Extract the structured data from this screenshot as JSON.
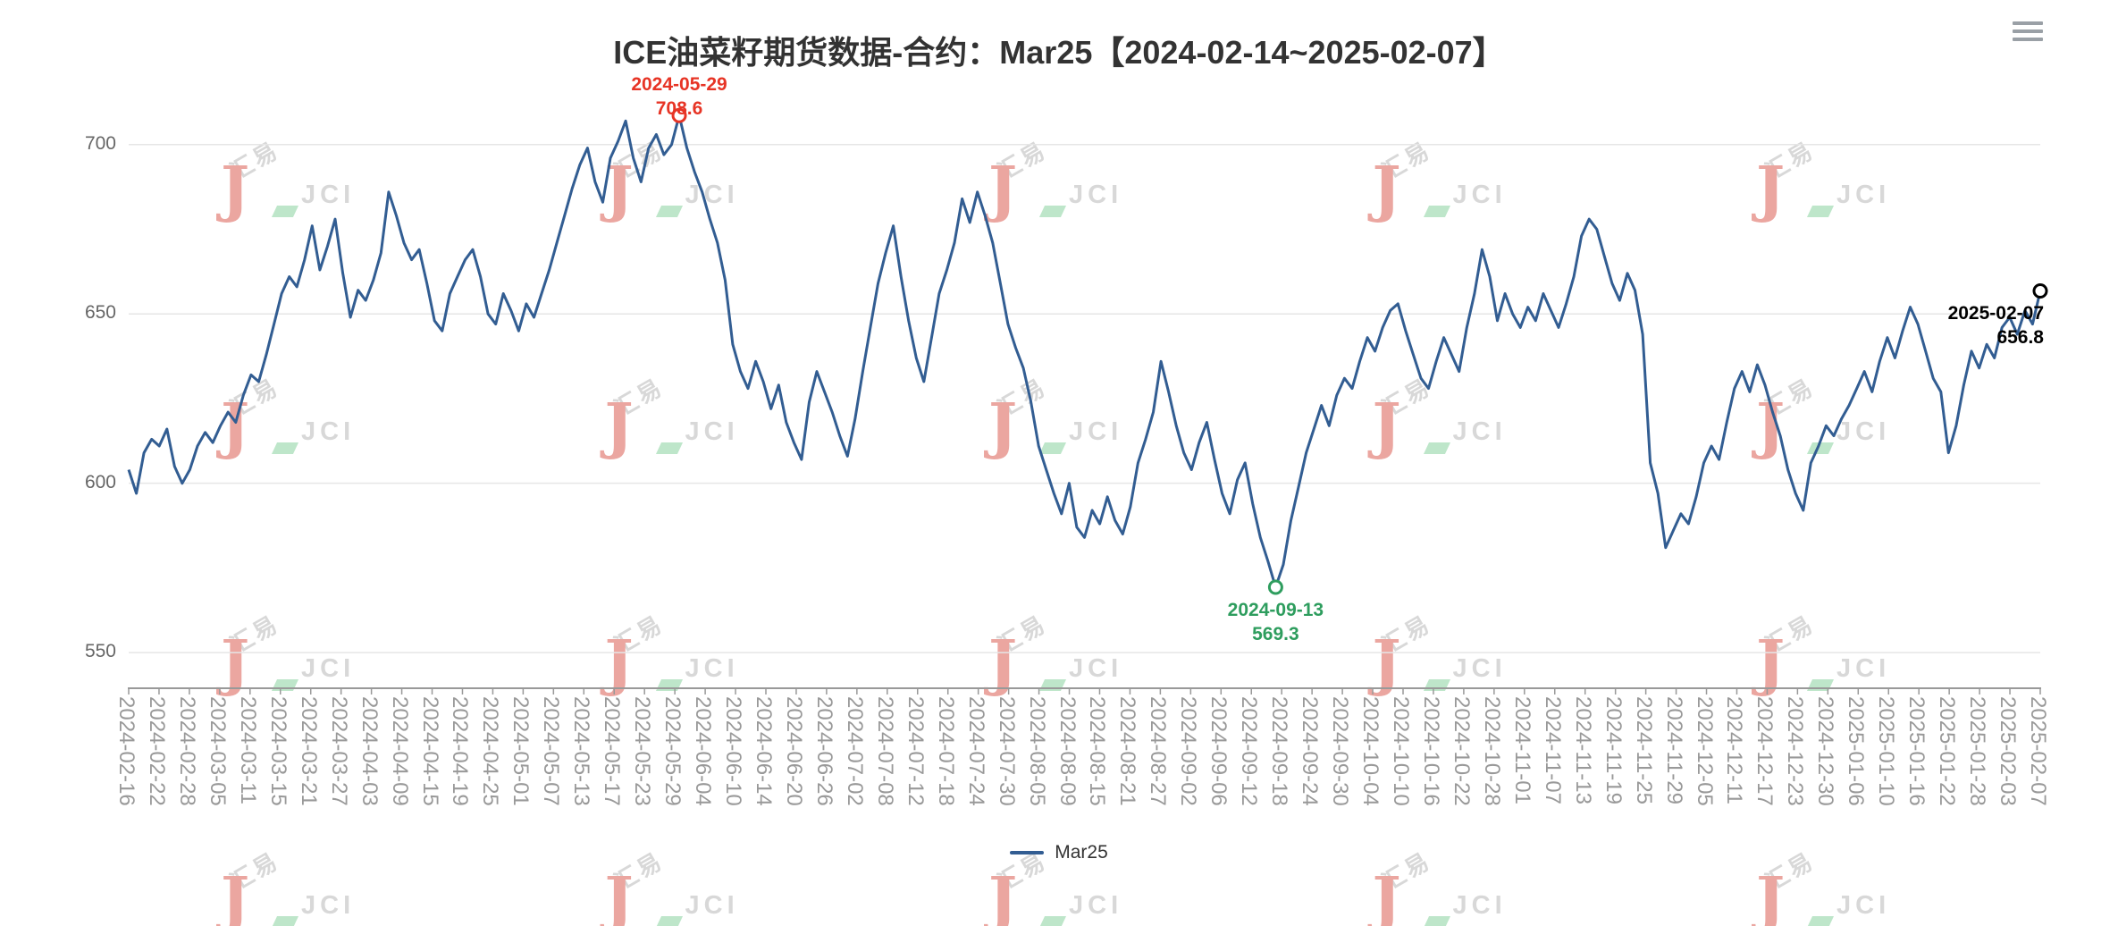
{
  "legend": {
    "items": [
      {
        "label": "Mar25",
        "color": "#325d92"
      }
    ]
  },
  "toolbox": {
    "icon": "hamburger-menu-icon"
  },
  "watermark": {
    "hy": "汇易",
    "j": "J",
    "jci": "JCI",
    "red": "#d94f44",
    "green": "#7fcf96",
    "gray": "#b3b3b3"
  },
  "chart_data": {
    "type": "line",
    "title": "ICE油菜籽期货数据-合约：Mar25【2024-02-14~2025-02-07】",
    "series_name": "Mar25",
    "line_color": "#325d92",
    "grid_color": "#e6e6e6",
    "axis_color": "#999999",
    "ylim": [
      540,
      720
    ],
    "y_ticks": [
      550,
      600,
      650,
      700
    ],
    "x_labels": [
      "2024-02-16",
      "2024-02-22",
      "2024-02-28",
      "2024-03-05",
      "2024-03-11",
      "2024-03-15",
      "2024-03-21",
      "2024-03-27",
      "2024-04-03",
      "2024-04-09",
      "2024-04-15",
      "2024-04-19",
      "2024-04-25",
      "2024-05-01",
      "2024-05-07",
      "2024-05-13",
      "2024-05-17",
      "2024-05-23",
      "2024-05-29",
      "2024-06-04",
      "2024-06-10",
      "2024-06-14",
      "2024-06-20",
      "2024-06-26",
      "2024-07-02",
      "2024-07-08",
      "2024-07-12",
      "2024-07-18",
      "2024-07-24",
      "2024-07-30",
      "2024-08-05",
      "2024-08-09",
      "2024-08-15",
      "2024-08-21",
      "2024-08-27",
      "2024-09-02",
      "2024-09-06",
      "2024-09-12",
      "2024-09-18",
      "2024-09-24",
      "2024-09-30",
      "2024-10-04",
      "2024-10-10",
      "2024-10-16",
      "2024-10-22",
      "2024-10-28",
      "2024-11-01",
      "2024-11-07",
      "2024-11-13",
      "2024-11-19",
      "2024-11-25",
      "2024-11-29",
      "2024-12-05",
      "2024-12-11",
      "2024-12-17",
      "2024-12-23",
      "2024-12-30",
      "2025-01-06",
      "2025-01-10",
      "2025-01-16",
      "2025-01-22",
      "2025-01-28",
      "2025-02-03",
      "2025-02-07"
    ],
    "values": [
      604,
      597,
      609,
      613,
      611,
      616,
      605,
      600,
      604,
      611,
      615,
      612,
      617,
      621,
      618,
      626,
      632,
      630,
      638,
      647,
      656,
      661,
      658,
      666,
      676,
      663,
      670,
      678,
      662,
      649,
      657,
      654,
      660,
      668,
      686,
      679,
      671,
      666,
      669,
      659,
      648,
      645,
      656,
      661,
      666,
      669,
      661,
      650,
      647,
      656,
      651,
      645,
      653,
      649,
      656,
      663,
      671,
      679,
      687,
      694,
      699,
      689,
      683,
      696,
      701,
      707,
      696,
      689,
      699,
      703,
      697,
      700,
      708.6,
      699,
      692,
      686,
      678,
      671,
      660,
      641,
      633,
      628,
      636,
      630,
      622,
      629,
      618,
      612,
      607,
      624,
      633,
      627,
      621,
      614,
      608,
      619,
      633,
      646,
      659,
      668,
      676,
      661,
      648,
      637,
      630,
      643,
      656,
      663,
      671,
      684,
      677,
      686,
      679,
      671,
      659,
      647,
      640,
      634,
      624,
      611,
      604,
      597,
      591,
      600,
      587,
      584,
      592,
      588,
      596,
      589,
      585,
      593,
      606,
      613,
      621,
      636,
      627,
      617,
      609,
      604,
      612,
      618,
      607,
      597,
      591,
      601,
      606,
      594,
      584,
      577,
      569.3,
      576,
      589,
      599,
      609,
      616,
      623,
      617,
      626,
      631,
      628,
      636,
      643,
      639,
      646,
      651,
      653,
      645,
      638,
      631,
      628,
      636,
      643,
      638,
      633,
      646,
      656,
      669,
      661,
      648,
      656,
      650,
      646,
      652,
      648,
      656,
      651,
      646,
      653,
      661,
      673,
      678,
      675,
      667,
      659,
      654,
      662,
      657,
      644,
      606,
      597,
      581,
      586,
      591,
      588,
      596,
      606,
      611,
      607,
      618,
      628,
      633,
      627,
      635,
      629,
      621,
      614,
      604,
      597,
      592,
      606,
      611,
      617,
      614,
      619,
      623,
      628,
      633,
      627,
      636,
      643,
      637,
      645,
      652,
      647,
      639,
      631,
      627,
      609,
      617,
      629,
      639,
      634,
      641,
      637,
      646,
      649,
      644,
      651,
      647,
      656.8
    ],
    "annotations": {
      "max": {
        "date": "2024-05-29",
        "value": 708.6,
        "color": "#e73425"
      },
      "min": {
        "date": "2024-09-13",
        "value": 569.3,
        "color": "#2e9d5e"
      },
      "last": {
        "date": "2025-02-07",
        "value": 656.8,
        "color": "#000000"
      }
    }
  }
}
